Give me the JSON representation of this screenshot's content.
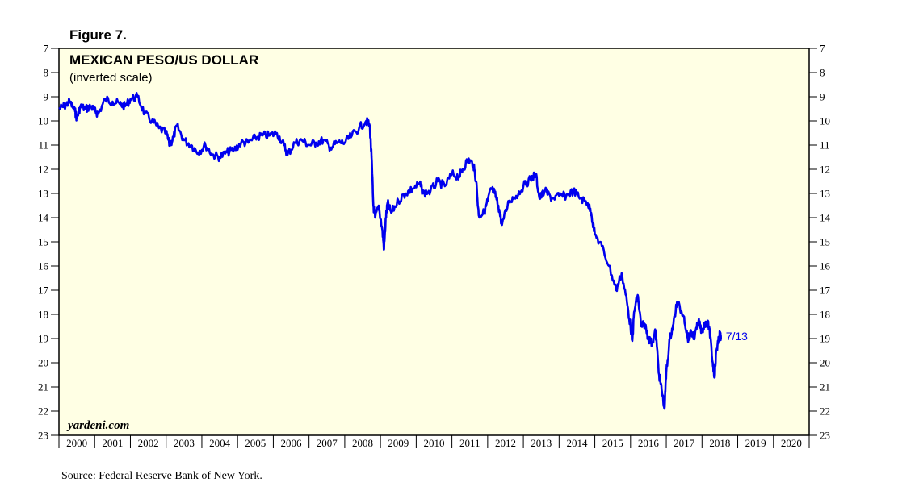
{
  "figure_label": "Figure 7.",
  "source": "Source: Federal Reserve Bank of New York.",
  "watermark": "yardeni.com",
  "colors": {
    "line": "#0000ee",
    "plot_background": "#ffffe4",
    "axis": "#000000"
  },
  "chart_data": {
    "type": "line",
    "title": "MEXICAN PESO/US DOLLAR",
    "subtitle": "(inverted scale)",
    "y_inverted": true,
    "ylim": [
      7,
      23
    ],
    "y_ticks": [
      7,
      8,
      9,
      10,
      11,
      12,
      13,
      14,
      15,
      16,
      17,
      18,
      19,
      20,
      21,
      22,
      23
    ],
    "xlim": [
      2000,
      2021
    ],
    "x_ticks": [
      "2000",
      "2001",
      "2002",
      "2003",
      "2004",
      "2005",
      "2006",
      "2007",
      "2008",
      "2009",
      "2010",
      "2011",
      "2012",
      "2013",
      "2014",
      "2015",
      "2016",
      "2017",
      "2018",
      "2019",
      "2020"
    ],
    "grid": false,
    "annotation": {
      "text": "7/13",
      "x": 2018.53,
      "y": 19.0
    },
    "series": [
      {
        "x": [
          2000.0,
          2000.15,
          2000.3,
          2000.45,
          2000.5,
          2000.6,
          2000.75,
          2000.9,
          2001.0,
          2001.1,
          2001.3,
          2001.5,
          2001.7,
          2001.85,
          2002.0,
          2002.2,
          2002.4,
          2002.6,
          2002.8,
          2003.0,
          2003.1,
          2003.2,
          2003.3,
          2003.5,
          2003.7,
          2003.9,
          2004.1,
          2004.3,
          2004.5,
          2004.7,
          2004.9,
          2005.1,
          2005.3,
          2005.5,
          2005.7,
          2005.9,
          2006.1,
          2006.3,
          2006.4,
          2006.6,
          2006.8,
          2007.0,
          2007.2,
          2007.4,
          2007.6,
          2007.8,
          2008.0,
          2008.2,
          2008.4,
          2008.6,
          2008.7,
          2008.75,
          2008.8,
          2008.85,
          2008.95,
          2009.05,
          2009.1,
          2009.15,
          2009.2,
          2009.3,
          2009.5,
          2009.7,
          2009.9,
          2010.1,
          2010.2,
          2010.4,
          2010.6,
          2010.8,
          2011.0,
          2011.2,
          2011.3,
          2011.45,
          2011.6,
          2011.68,
          2011.75,
          2011.9,
          2012.0,
          2012.1,
          2012.2,
          2012.3,
          2012.4,
          2012.6,
          2012.8,
          2013.0,
          2013.2,
          2013.35,
          2013.45,
          2013.6,
          2013.8,
          2014.0,
          2014.2,
          2014.4,
          2014.6,
          2014.8,
          2014.9,
          2015.0,
          2015.2,
          2015.4,
          2015.6,
          2015.75,
          2015.9,
          2016.0,
          2016.05,
          2016.1,
          2016.2,
          2016.3,
          2016.4,
          2016.5,
          2016.6,
          2016.7,
          2016.8,
          2016.88,
          2016.95,
          2017.0,
          2017.1,
          2017.2,
          2017.3,
          2017.5,
          2017.6,
          2017.7,
          2017.8,
          2017.9,
          2018.0,
          2018.1,
          2018.2,
          2018.3,
          2018.35,
          2018.4,
          2018.45,
          2018.5,
          2018.53
        ],
        "values": [
          9.5,
          9.4,
          9.2,
          9.6,
          9.9,
          9.4,
          9.5,
          9.4,
          9.6,
          9.7,
          9.1,
          9.2,
          9.3,
          9.4,
          9.1,
          9.0,
          9.7,
          10.0,
          10.3,
          10.5,
          11.0,
          10.7,
          10.2,
          10.8,
          11.0,
          11.3,
          11.0,
          11.4,
          11.5,
          11.3,
          11.2,
          10.9,
          10.9,
          10.7,
          10.6,
          10.6,
          10.5,
          11.0,
          11.4,
          10.9,
          10.8,
          11.0,
          10.9,
          10.8,
          11.1,
          10.9,
          10.9,
          10.6,
          10.3,
          10.0,
          10.2,
          11.5,
          13.5,
          14.0,
          13.5,
          14.5,
          15.3,
          14.0,
          13.4,
          13.8,
          13.3,
          13.0,
          12.8,
          12.6,
          13.0,
          12.9,
          12.5,
          12.7,
          12.2,
          12.3,
          12.0,
          11.6,
          11.8,
          12.5,
          13.9,
          13.8,
          13.3,
          12.8,
          13.0,
          13.5,
          14.3,
          13.3,
          13.1,
          12.7,
          12.4,
          12.2,
          13.2,
          12.9,
          13.2,
          13.1,
          13.1,
          12.9,
          13.2,
          13.4,
          13.8,
          14.7,
          15.2,
          16.0,
          17.0,
          16.3,
          17.5,
          18.5,
          19.1,
          17.9,
          17.2,
          18.5,
          18.4,
          19.0,
          19.2,
          18.7,
          20.5,
          21.2,
          21.9,
          20.4,
          19.0,
          18.4,
          17.5,
          18.1,
          19.0,
          18.8,
          18.9,
          18.3,
          18.7,
          18.3,
          18.5,
          20.0,
          20.6,
          19.5,
          19.2,
          18.8,
          19.0
        ]
      }
    ]
  }
}
